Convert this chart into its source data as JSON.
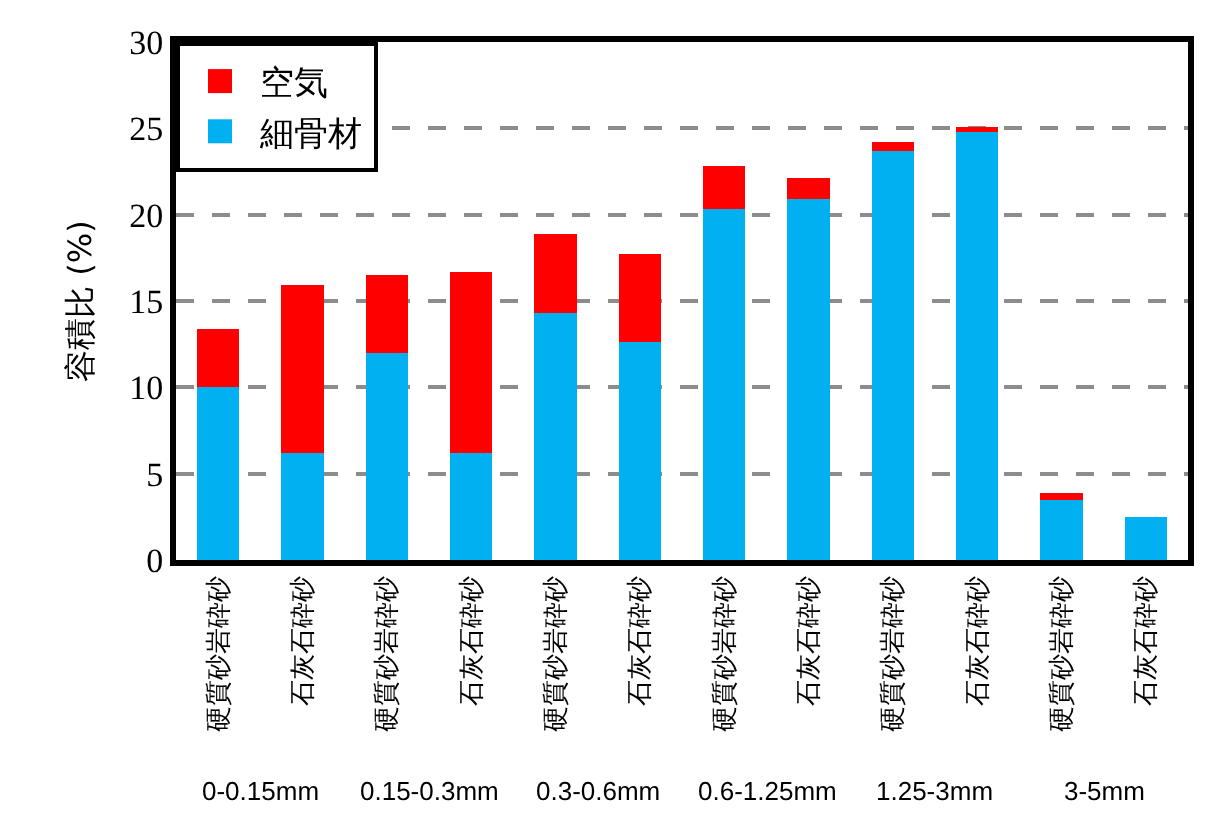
{
  "chart_data": {
    "type": "bar",
    "stacked": true,
    "ylabel": "容積比 (%)",
    "categories": [
      "硬質砂岩砕砂",
      "石灰石砕砂",
      "硬質砂岩砕砂",
      "石灰石砕砂",
      "硬質砂岩砕砂",
      "石灰石砕砂",
      "硬質砂岩砕砂",
      "石灰石砕砂",
      "硬質砂岩砕砂",
      "石灰石砕砂",
      "硬質砂岩砕砂",
      "石灰石砕砂"
    ],
    "series": [
      {
        "name": "細骨材",
        "color": "#00b0f0",
        "values": [
          10.0,
          6.2,
          12.0,
          6.2,
          14.3,
          12.6,
          20.3,
          20.9,
          23.7,
          24.9,
          3.5,
          2.5
        ]
      },
      {
        "name": "空気",
        "color": "#ff0000",
        "values": [
          3.4,
          9.7,
          4.5,
          10.5,
          4.6,
          5.1,
          2.5,
          1.2,
          0.5,
          0.2,
          0.4,
          0
        ]
      }
    ],
    "annotations": [
      "0-0.15mm",
      "0.15-0.3mm",
      "0.3-0.6mm",
      "0.6-1.25mm",
      "1.25-3mm",
      "3-5mm"
    ],
    "ylim": [
      0,
      30
    ],
    "yticks": [
      0,
      5,
      10,
      15,
      20,
      25,
      30
    ],
    "grid": "y",
    "legend": "top left"
  }
}
